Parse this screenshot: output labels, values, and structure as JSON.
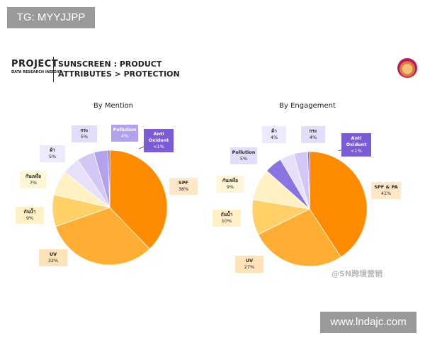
{
  "tag": "TG: MYYJJPP",
  "url": "www.lndajc.com",
  "header": {
    "project": "PROJECT",
    "project_sub": "DATA RESEARCH INSIGHT",
    "title_line1": "SUNSCREEN : PRODUCT",
    "title_line2": "ATTRIBUTES > PROTECTION"
  },
  "watermark": "@SN跨境营销",
  "chart_data": [
    {
      "type": "pie",
      "title": "By Mention",
      "slices": [
        {
          "label": "SPF",
          "value": 38,
          "display": "38%",
          "color": "#ff8c00"
        },
        {
          "label": "UV",
          "value": 32,
          "display": "32%",
          "color": "#ffad33"
        },
        {
          "label": "กันน้ำ",
          "value": 9,
          "display": "9%",
          "color": "#ffd166"
        },
        {
          "label": "กันเหงื่อ",
          "value": 7,
          "display": "7%",
          "color": "#fff1c2"
        },
        {
          "label": "ผ้า",
          "value": 5,
          "display": "5%",
          "color": "#e6e0fa"
        },
        {
          "label": "กระ",
          "value": 5,
          "display": "5%",
          "color": "#d2c7f5"
        },
        {
          "label": "Pollution",
          "value": 4,
          "display": "4%",
          "color": "#b3a1ee"
        },
        {
          "label": "Anti Oxident",
          "value": 0.5,
          "display": "<1%",
          "color": "#7b5cd6"
        }
      ]
    },
    {
      "type": "pie",
      "title": "By Engagement",
      "slices": [
        {
          "label": "SPF & PA",
          "value": 41,
          "display": "41%",
          "color": "#ff8c00"
        },
        {
          "label": "UV",
          "value": 27,
          "display": "27%",
          "color": "#ffad33"
        },
        {
          "label": "กันน้ำ",
          "value": 10,
          "display": "10%",
          "color": "#ffd166"
        },
        {
          "label": "กันเหงื่อ",
          "value": 9,
          "display": "9%",
          "color": "#fff1c2"
        },
        {
          "label": "Pollution",
          "value": 5,
          "display": "5%",
          "color": "#8a74e2"
        },
        {
          "label": "ผ้า",
          "value": 4,
          "display": "4%",
          "color": "#e6e0fa"
        },
        {
          "label": "กระ",
          "value": 4,
          "display": "4%",
          "color": "#d2c7f5"
        },
        {
          "label": "Anti Oxident",
          "value": 0.5,
          "display": "<1%",
          "color": "#7b5cd6"
        }
      ]
    }
  ]
}
